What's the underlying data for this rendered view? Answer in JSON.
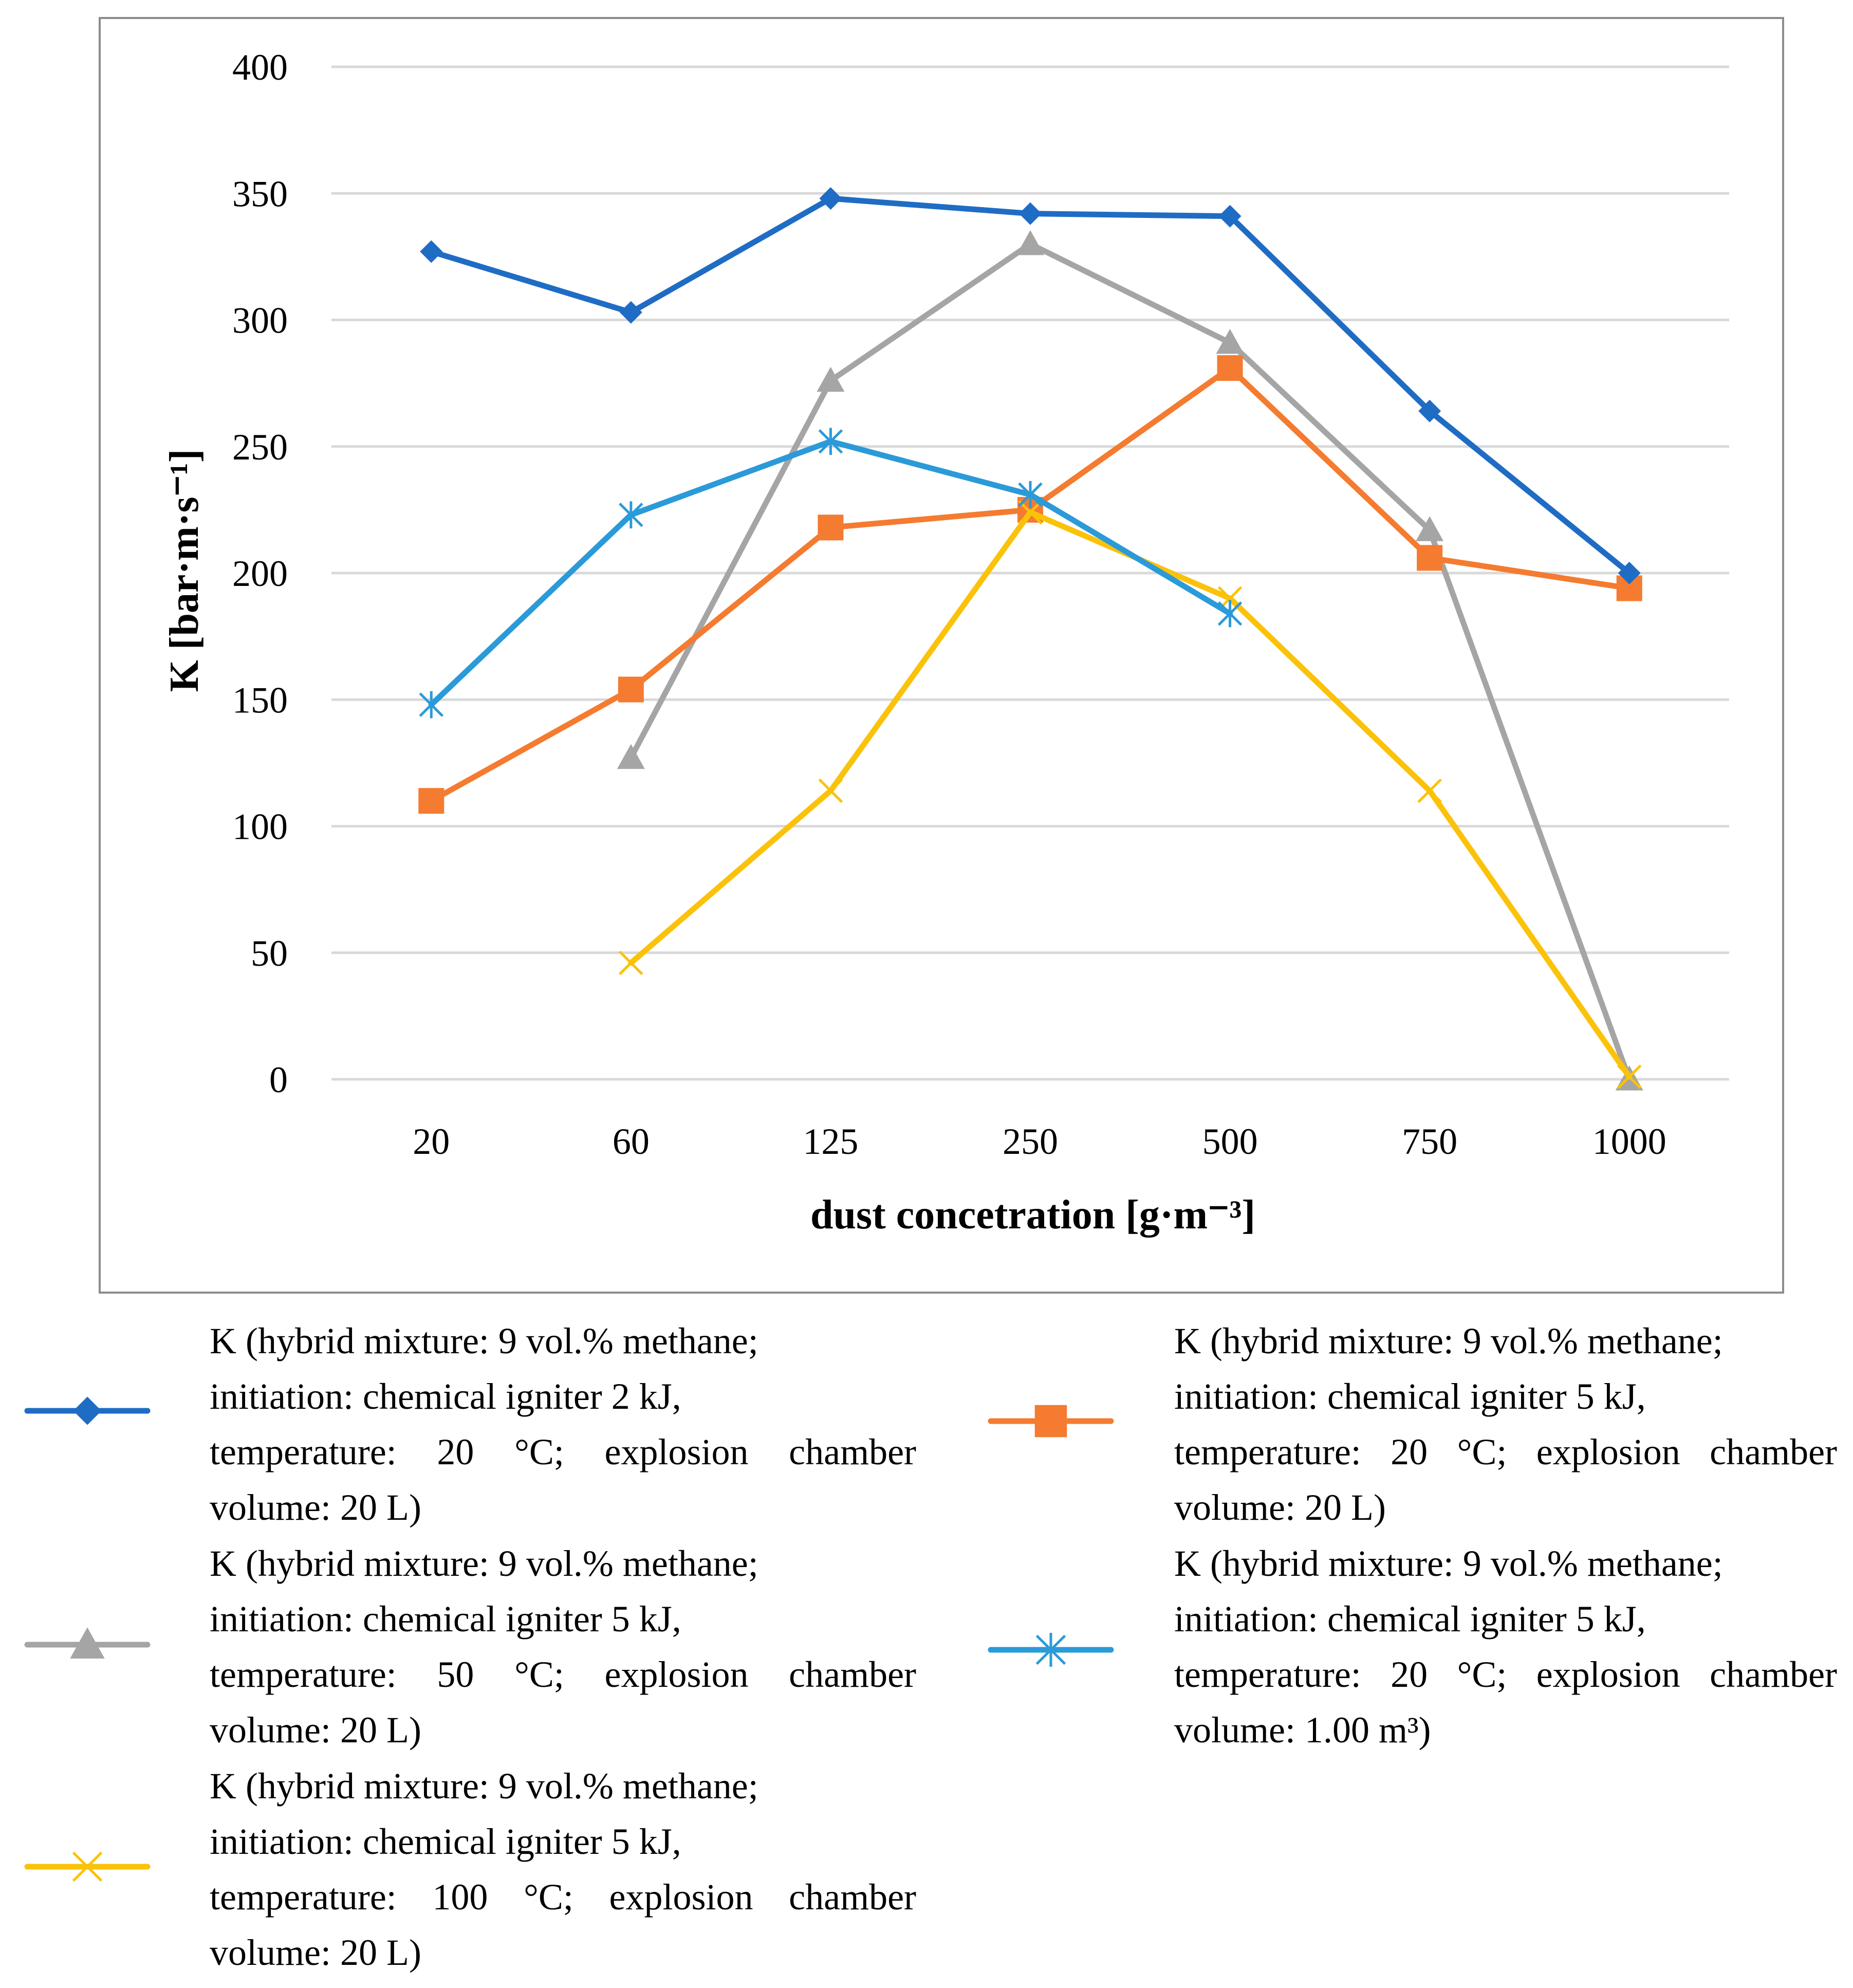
{
  "chart_data": {
    "type": "line",
    "title": "",
    "xlabel": "dust concetration [g·m⁻³]",
    "ylabel": "K [bar·m·s⁻¹]",
    "categories": [
      "20",
      "60",
      "125",
      "250",
      "500",
      "750",
      "1000"
    ],
    "ylim": [
      0,
      400
    ],
    "yticks": [
      0,
      50,
      100,
      150,
      200,
      250,
      300,
      350,
      400
    ],
    "grid": true,
    "legend_position": "bottom",
    "series": [
      {
        "name": "K (hybrid mixture: 9 vol.% methane; initiation: chemical igniter 2 kJ, temperature: 20 °C; explosion chamber volume: 20 L)",
        "legend_lines": [
          "K (hybrid mixture: 9 vol.% methane;",
          "initiation: chemical igniter 2 kJ,",
          "temperature:  20  °C;  explosion  chamber",
          "volume: 20 L)"
        ],
        "color": "#1f6cc4",
        "marker": "diamond",
        "values": [
          327,
          303,
          348,
          342,
          341,
          264,
          200
        ]
      },
      {
        "name": "K (hybrid mixture: 9 vol.% methane; initiation: chemical igniter 5 kJ, temperature: 20 °C; explosion chamber volume: 20 L)",
        "legend_lines": [
          "K (hybrid mixture: 9 vol.% methane;",
          "initiation: chemical igniter 5 kJ,",
          "temperature: 20 °C; explosion chamber",
          "volume: 20 L)"
        ],
        "color": "#f47b30",
        "marker": "square",
        "values": [
          110,
          154,
          218,
          225,
          281,
          206,
          194
        ]
      },
      {
        "name": "K (hybrid mixture: 9 vol.% methane; initiation: chemical igniter 5 kJ, temperature: 50 °C; explosion chamber volume: 20 L)",
        "legend_lines": [
          "K (hybrid mixture: 9 vol.% methane;",
          "initiation: chemical igniter 5 kJ,",
          "temperature:  50  °C;  explosion  chamber",
          "volume: 20 L)"
        ],
        "color": "#a5a5a5",
        "marker": "triangle",
        "values": [
          null,
          127,
          276,
          330,
          291,
          217,
          0
        ]
      },
      {
        "name": "K (hybrid mixture: 9 vol.% methane; initiation: chemical igniter 5 kJ, temperature: 20 °C; explosion chamber volume: 1.00 m³)",
        "legend_lines": [
          "K (hybrid mixture: 9 vol.% methane;",
          "initiation: chemical igniter 5 kJ,",
          "temperature: 20 °C; explosion chamber",
          "volume: 1.00 m³)"
        ],
        "color": "#2b9ad8",
        "marker": "asterisk",
        "values": [
          148,
          223,
          252,
          231,
          184,
          null,
          null
        ]
      },
      {
        "name": "K (hybrid mixture: 9 vol.% methane; initiation: chemical igniter 5 kJ, temperature: 100 °C; explosion chamber volume: 20 L)",
        "legend_lines": [
          "K (hybrid mixture: 9 vol.% methane;",
          "initiation: chemical igniter 5 kJ,",
          "temperature:  100  °C;  explosion  chamber",
          "volume: 20 L)"
        ],
        "color": "#fbc20a",
        "marker": "x",
        "values": [
          null,
          46,
          114,
          224,
          190,
          114,
          1
        ]
      }
    ]
  }
}
